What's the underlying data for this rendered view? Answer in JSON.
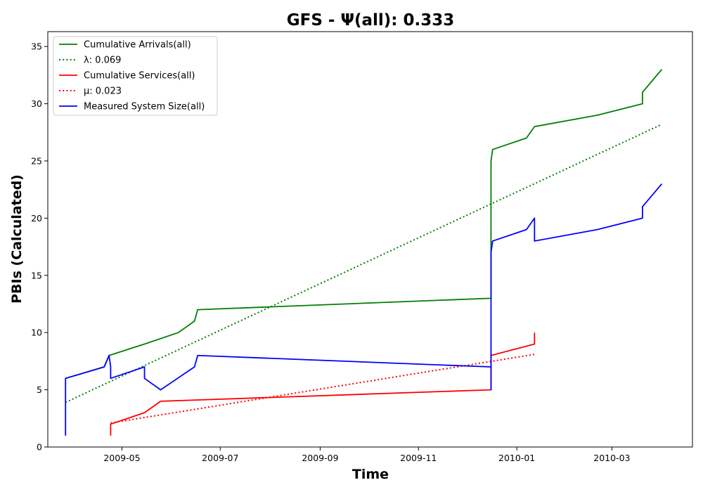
{
  "chart_data": {
    "type": "line",
    "title": "GFS -  Ψ(all): 0.333",
    "xlabel": "Time",
    "ylabel": "PBIs (Calculated)",
    "xlim": [
      "2009-03-16",
      "2010-04-20"
    ],
    "ylim": [
      0,
      36.3
    ],
    "x_ticks": [
      {
        "date": "2009-05-01",
        "label": "2009-05"
      },
      {
        "date": "2009-07-01",
        "label": "2009-07"
      },
      {
        "date": "2009-09-01",
        "label": "2009-09"
      },
      {
        "date": "2009-11-01",
        "label": "2009-11"
      },
      {
        "date": "2010-01-01",
        "label": "2010-01"
      },
      {
        "date": "2010-03-01",
        "label": "2010-03"
      }
    ],
    "y_ticks": [
      0,
      5,
      10,
      15,
      20,
      25,
      30,
      35
    ],
    "grid": false,
    "legend_position": "top-left",
    "series": [
      {
        "name": "Cumulative Arrivals(all)",
        "color": "#008000",
        "style": "solid",
        "points": [
          [
            "2009-03-27",
            6
          ],
          [
            "2009-04-20",
            7
          ],
          [
            "2009-04-23",
            8
          ],
          [
            "2009-05-15",
            9
          ],
          [
            "2009-06-05",
            10
          ],
          [
            "2009-06-15",
            11
          ],
          [
            "2009-06-17",
            12
          ],
          [
            "2009-12-16",
            13
          ],
          [
            "2009-12-16",
            25
          ],
          [
            "2009-12-17",
            26
          ],
          [
            "2010-01-07",
            27
          ],
          [
            "2010-01-12",
            28
          ],
          [
            "2010-02-20",
            29
          ],
          [
            "2010-03-20",
            30
          ],
          [
            "2010-03-20",
            31
          ],
          [
            "2010-03-26",
            32
          ],
          [
            "2010-04-01",
            33
          ]
        ]
      },
      {
        "name": "λ: 0.069",
        "color": "#008000",
        "style": "dotted",
        "points": [
          [
            "2009-03-27",
            3.9
          ],
          [
            "2010-04-01",
            28.2
          ]
        ]
      },
      {
        "name": "Cumulative Services(all)",
        "color": "#ff0000",
        "style": "solid",
        "points": [
          [
            "2009-04-24",
            1
          ],
          [
            "2009-04-24",
            2
          ],
          [
            "2009-05-15",
            3
          ],
          [
            "2009-05-25",
            4
          ],
          [
            "2009-12-16",
            5
          ],
          [
            "2009-12-16",
            8
          ],
          [
            "2010-01-12",
            9
          ],
          [
            "2010-01-12",
            10
          ]
        ]
      },
      {
        "name": "μ: 0.023",
        "color": "#ff0000",
        "style": "dotted",
        "points": [
          [
            "2009-04-24",
            2.1
          ],
          [
            "2010-01-12",
            8.1
          ]
        ]
      },
      {
        "name": "Measured System Size(all)",
        "color": "#0000ff",
        "style": "solid",
        "points": [
          [
            "2009-03-27",
            1
          ],
          [
            "2009-03-27",
            6
          ],
          [
            "2009-04-20",
            7
          ],
          [
            "2009-04-23",
            8
          ],
          [
            "2009-04-24",
            7
          ],
          [
            "2009-04-24",
            6
          ],
          [
            "2009-05-15",
            7
          ],
          [
            "2009-05-15",
            6
          ],
          [
            "2009-05-25",
            5
          ],
          [
            "2009-06-15",
            7
          ],
          [
            "2009-06-17",
            8
          ],
          [
            "2009-12-16",
            7
          ],
          [
            "2009-12-16",
            5
          ],
          [
            "2009-12-16",
            9
          ],
          [
            "2009-12-16",
            14
          ],
          [
            "2009-12-16",
            17
          ],
          [
            "2009-12-17",
            18
          ],
          [
            "2010-01-07",
            19
          ],
          [
            "2010-01-12",
            20
          ],
          [
            "2010-01-12",
            18
          ],
          [
            "2010-02-20",
            19
          ],
          [
            "2010-03-20",
            20
          ],
          [
            "2010-03-20",
            21
          ],
          [
            "2010-03-26",
            22
          ],
          [
            "2010-04-01",
            23
          ]
        ]
      }
    ]
  }
}
